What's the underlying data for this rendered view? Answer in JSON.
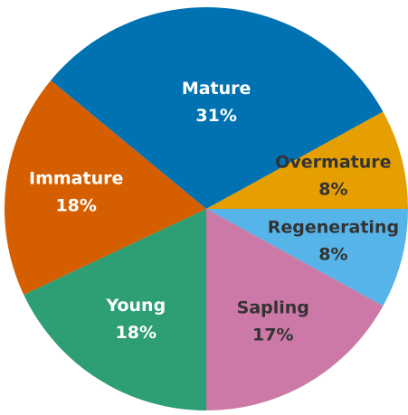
{
  "chart_data": {
    "type": "pie",
    "categories": [
      "Regenerating",
      "Sapling",
      "Young",
      "Immature",
      "Mature",
      "Overmature"
    ],
    "values": [
      8,
      17,
      18,
      18,
      31,
      8
    ],
    "value_labels": [
      "8%",
      "17%",
      "18%",
      "18%",
      "31%",
      "8%"
    ],
    "colors": [
      "#56b4e9",
      "#cc79a7",
      "#2e9e75",
      "#d55e00",
      "#0072b2",
      "#e69f00"
    ]
  }
}
